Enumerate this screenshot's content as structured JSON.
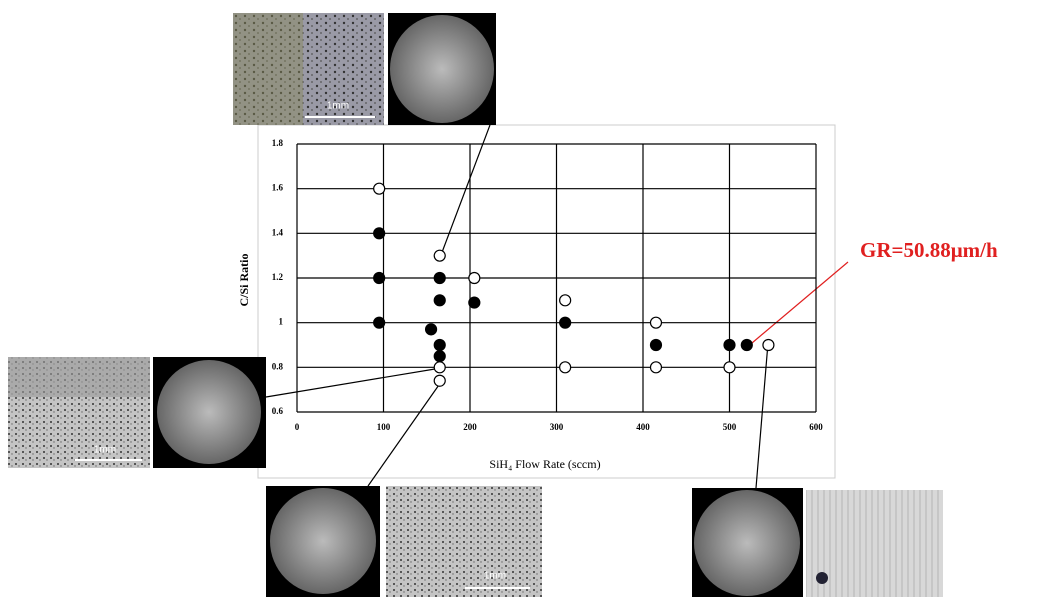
{
  "chart_data": {
    "type": "scatter",
    "x_label": "SiH₄  Flow Rate (sccm)",
    "y_label": "C/Si Ratio",
    "annotation": "GR=50.88μm/h",
    "xlim": [
      0,
      600
    ],
    "xticks": [
      0,
      100,
      200,
      300,
      400,
      500,
      600
    ],
    "ylim": [
      0.6,
      1.8
    ],
    "yticks": [
      0.6,
      0.8,
      1,
      1.2,
      1.4,
      1.6,
      1.8
    ],
    "grid": true,
    "series": [
      {
        "color": "#000000",
        "x": [
          95,
          95,
          95,
          155,
          165,
          165,
          165,
          165,
          205,
          310,
          415,
          500,
          520
        ],
        "values": [
          1.4,
          1.2,
          1.0,
          0.97,
          1.2,
          1.1,
          0.9,
          0.85,
          1.09,
          1.0,
          0.9,
          0.9,
          0.9
        ]
      },
      {
        "color": "#ffffff",
        "x": [
          95,
          165,
          205,
          165,
          165,
          310,
          310,
          415,
          415,
          500,
          545
        ],
        "values": [
          1.6,
          1.3,
          1.2,
          0.8,
          0.74,
          1.1,
          0.8,
          1.0,
          0.8,
          0.8,
          0.9
        ]
      }
    ]
  },
  "micrograph_scale_labels": [
    "1mm",
    "1mm",
    "1mm"
  ]
}
